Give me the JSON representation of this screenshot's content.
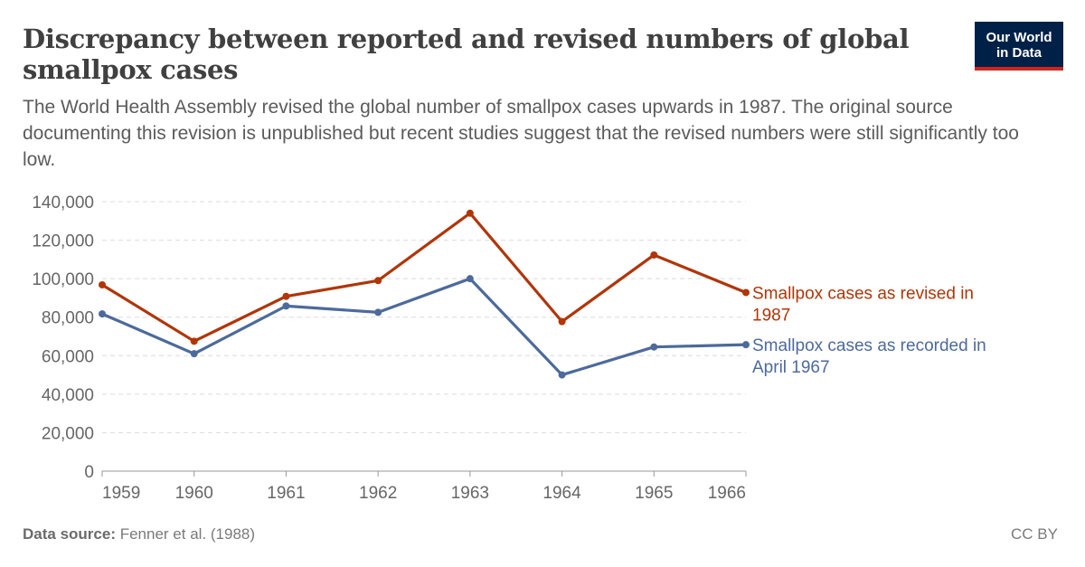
{
  "title": "Discrepancy between reported and revised numbers of global smallpox cases",
  "subtitle": "The World Health Assembly revised the global number of smallpox cases upwards in 1987. The original source documenting this revision is unpublished but recent studies suggest that the revised numbers were still significantly too low.",
  "logo": {
    "line1": "Our World",
    "line2": "in Data",
    "bg_color": "#002147",
    "accent_color": "#ce261e"
  },
  "footer": {
    "source_label": "Data source:",
    "source_text": "Fenner et al. (1988)",
    "license": "CC BY"
  },
  "chart_data": {
    "type": "line",
    "x": [
      1959,
      1960,
      1961,
      1962,
      1963,
      1964,
      1965,
      1966
    ],
    "ylim": [
      0,
      140000
    ],
    "yticks": [
      0,
      20000,
      40000,
      60000,
      80000,
      100000,
      120000,
      140000
    ],
    "ytick_labels": [
      "0",
      "20,000",
      "40,000",
      "60,000",
      "80,000",
      "100,000",
      "120,000",
      "140,000"
    ],
    "xtick_labels": [
      "1959",
      "1960",
      "1961",
      "1962",
      "1963",
      "1964",
      "1965",
      "1966"
    ],
    "grid": "horizontal dashed",
    "legend": "inline labels at line ends",
    "series": [
      {
        "name": "Smallpox cases as revised in 1987",
        "name_line1": "Smallpox cases as revised in",
        "name_line2": "1987",
        "color": "#b13507",
        "values": [
          96800,
          67500,
          90800,
          99000,
          134000,
          77700,
          112300,
          92800
        ]
      },
      {
        "name": "Smallpox cases as recorded in April 1967",
        "name_line1": "Smallpox cases as recorded in",
        "name_line2": "April 1967",
        "color": "#4c6a9c",
        "values": [
          81700,
          61000,
          85800,
          82500,
          100000,
          50000,
          64500,
          65700
        ]
      }
    ]
  }
}
